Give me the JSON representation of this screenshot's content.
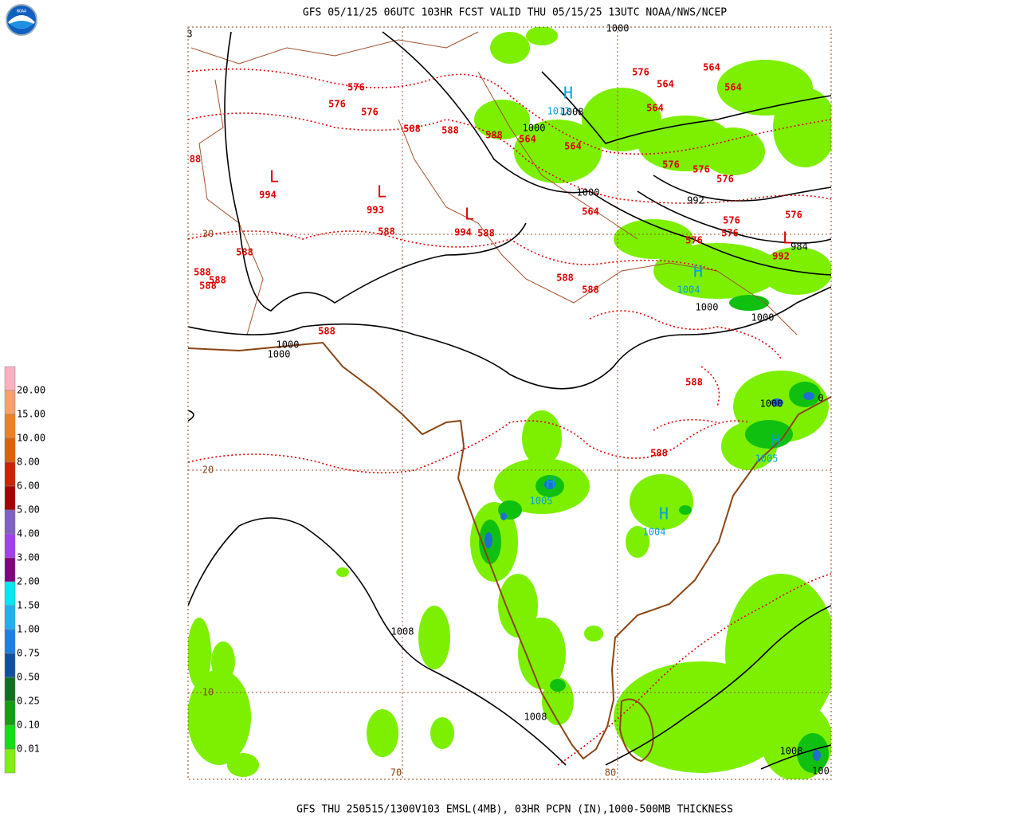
{
  "header": {
    "title": "GFS 05/11/25 06UTC 103HR FCST VALID THU 05/15/25 13UTC NOAA/NWS/NCEP",
    "logo": "NOAA"
  },
  "footer": {
    "caption": "GFS THU 250515/1300V103 EMSL(4MB), 03HR PCPN (IN),1000-500MB THICKNESS"
  },
  "legend": {
    "labels": [
      "20.00",
      "15.00",
      "10.00",
      "8.00",
      "6.00",
      "5.00",
      "4.00",
      "3.00",
      "2.00",
      "1.50",
      "1.00",
      "0.75",
      "0.50",
      "0.25",
      "0.10",
      "0.01"
    ]
  },
  "map": {
    "lat_labels": [
      "30",
      "20",
      "10"
    ],
    "lon_labels": [
      "70",
      "80"
    ],
    "thickness_labels": [
      "576",
      "576",
      "576",
      "588",
      "588",
      "588",
      "564",
      "564",
      "576",
      "564",
      "564",
      "564",
      "564",
      "576",
      "576",
      "576",
      "576",
      "576",
      "576",
      "576",
      "564",
      "588",
      "588",
      "588",
      "588",
      "588",
      "588",
      "588",
      "588",
      "588",
      "588",
      "588",
      "88"
    ],
    "pressure_labels": [
      "1000",
      "1008",
      "1000",
      "1000",
      "992",
      "1000",
      "1000",
      "1000",
      "1000",
      "1000",
      "1008",
      "1008",
      "1008",
      "100",
      "984",
      "3",
      "0"
    ],
    "lows": [
      {
        "symbol": "L",
        "value": "994"
      },
      {
        "symbol": "L",
        "value": "993"
      },
      {
        "symbol": "L",
        "value": "994"
      },
      {
        "symbol": "L",
        "value": "992"
      }
    ],
    "highs": [
      {
        "symbol": "H",
        "value": "1012"
      },
      {
        "symbol": "H",
        "value": "1004"
      },
      {
        "symbol": "H",
        "value": "1005"
      },
      {
        "symbol": "H",
        "value": "1005"
      },
      {
        "symbol": "H",
        "value": "1004"
      }
    ]
  }
}
